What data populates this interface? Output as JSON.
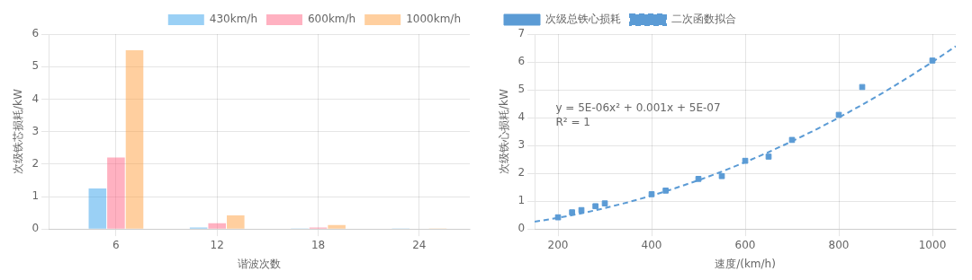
{
  "chart_data": [
    {
      "type": "bar",
      "xlabel": "谐波次数",
      "ylabel": "次级铁芯损耗/kW",
      "x": [
        6,
        12,
        18,
        24
      ],
      "series": [
        {
          "name": "430km/h",
          "values": [
            1.25,
            0.05,
            0.02,
            0.005
          ]
        },
        {
          "name": "600km/h",
          "values": [
            2.2,
            0.18,
            0.05,
            0.01
          ]
        },
        {
          "name": "1000km/h",
          "values": [
            5.5,
            0.42,
            0.12,
            0.02
          ]
        }
      ],
      "xlim": [
        2,
        27
      ],
      "xticks": [
        6,
        12,
        18,
        24
      ],
      "ylim": [
        0,
        6
      ],
      "yticks": [
        0,
        1,
        2,
        3,
        4,
        5,
        6
      ],
      "grid": true,
      "legend": "upper right"
    },
    {
      "type": "scatter",
      "xlabel": "速度/(km/h)",
      "ylabel": "次级铁心损耗/kW",
      "series": [
        {
          "name": "次级总铁心损耗",
          "type": "scatter",
          "marker": "square",
          "color": "#5b9bd5",
          "x": [
            200,
            230,
            250,
            280,
            300,
            400,
            430,
            500,
            550,
            600,
            650,
            700,
            800,
            850,
            1000
          ],
          "values": [
            0.42,
            0.6,
            0.68,
            0.82,
            0.92,
            1.25,
            1.38,
            1.8,
            1.9,
            2.45,
            2.6,
            3.2,
            4.1,
            5.1,
            6.05
          ]
        },
        {
          "name": "二次函数拟合",
          "type": "line",
          "line_style": "dashed",
          "color": "#5b9bd5",
          "x": [
            150,
            200,
            250,
            300,
            350,
            400,
            450,
            500,
            550,
            600,
            650,
            700,
            750,
            800,
            850,
            900,
            950,
            1000,
            1050
          ],
          "values": [
            0.2625005,
            0.4000005,
            0.5625005,
            0.7500005,
            0.9625005,
            1.2000005,
            1.4625005,
            1.7500005,
            2.0625005,
            2.4000005,
            2.7625005,
            3.1500005,
            3.5625005,
            4.0000005,
            4.4625005,
            4.9500005,
            5.4625005,
            6.0000005,
            6.5625005
          ]
        }
      ],
      "xlim": [
        150,
        1050
      ],
      "xticks": [
        200,
        400,
        600,
        800,
        1000
      ],
      "ylim": [
        0,
        7
      ],
      "yticks": [
        0,
        1,
        2,
        3,
        4,
        5,
        6,
        7
      ],
      "grid": true,
      "legend": "upper left",
      "annotations": [
        "y = 5E-06x² + 0.001x + 5E-07",
        "R² = 1"
      ]
    }
  ]
}
